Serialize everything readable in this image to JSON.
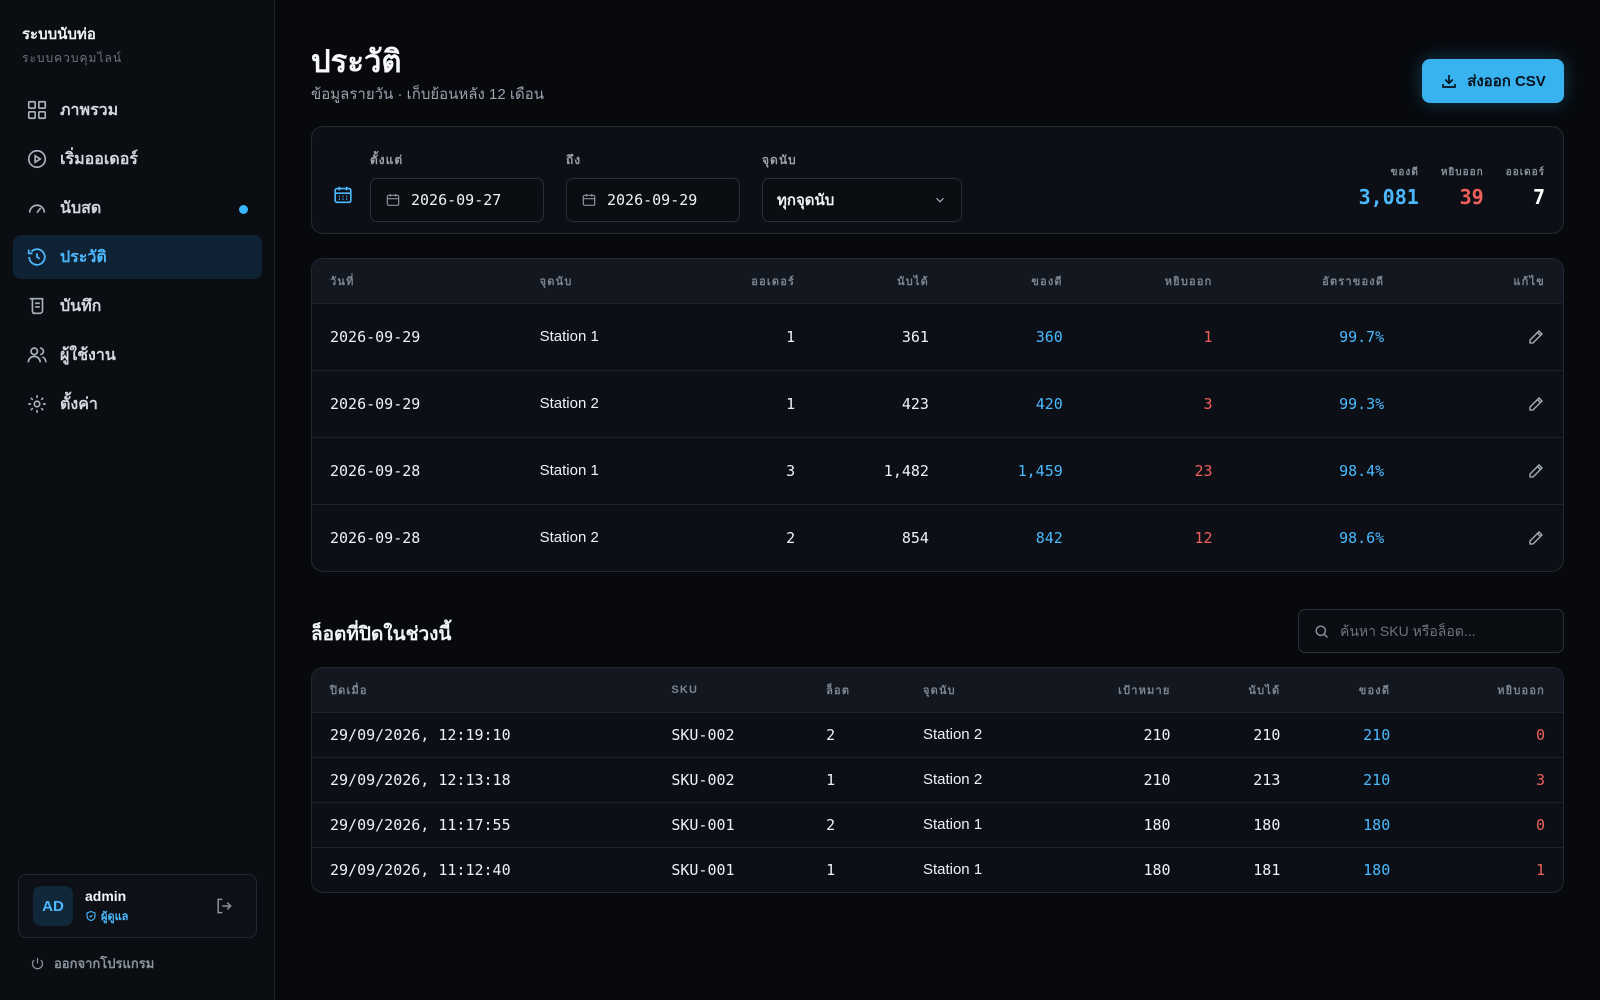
{
  "app": {
    "title": "ระบบนับท่อ",
    "subtitle": "ระบบควบคุมไลน์"
  },
  "nav": [
    {
      "label": "ภาพรวม",
      "icon": "grid-icon"
    },
    {
      "label": "เริ่มออเดอร์",
      "icon": "play-circle-icon"
    },
    {
      "label": "นับสด",
      "icon": "gauge-icon",
      "badge_dot": true
    },
    {
      "label": "ประวัติ",
      "icon": "history-icon",
      "active": true
    },
    {
      "label": "บันทึก",
      "icon": "scroll-icon"
    },
    {
      "label": "ผู้ใช้งาน",
      "icon": "users-icon"
    },
    {
      "label": "ตั้งค่า",
      "icon": "gear-icon"
    }
  ],
  "user": {
    "initials": "AD",
    "name": "admin",
    "role": "ผู้ดูแล"
  },
  "quit_label": "ออกจากโปรแกรม",
  "page": {
    "title": "ประวัติ",
    "subtitle": "ข้อมูลรายวัน · เก็บย้อนหลัง 12 เดือน",
    "export_label": "ส่งออก CSV"
  },
  "filters": {
    "from_label": "ตั้งแต่",
    "from_value": "2026-09-27",
    "to_label": "ถึง",
    "to_value": "2026-09-29",
    "station_label": "จุดนับ",
    "station_value": "ทุกจุดนับ"
  },
  "stats": [
    {
      "label": "ของดี",
      "value": "3,081",
      "color": "#4cb9ff"
    },
    {
      "label": "หยิบออก",
      "value": "39",
      "color": "#f0605a"
    },
    {
      "label": "ออเดอร์",
      "value": "7",
      "color": "#ffffff"
    }
  ],
  "daily_table": {
    "headers": [
      "วันที่",
      "จุดนับ",
      "ออเดอร์",
      "นับได้",
      "ของดี",
      "หยิบออก",
      "อัตราของดี",
      "แก้ไข"
    ],
    "rows": [
      {
        "date": "2026-09-29",
        "station": "Station 1",
        "orders": "1",
        "counted": "361",
        "good": "360",
        "removed": "1",
        "rate": "99.7%"
      },
      {
        "date": "2026-09-29",
        "station": "Station 2",
        "orders": "1",
        "counted": "423",
        "good": "420",
        "removed": "3",
        "rate": "99.3%"
      },
      {
        "date": "2026-09-28",
        "station": "Station 1",
        "orders": "3",
        "counted": "1,482",
        "good": "1,459",
        "removed": "23",
        "rate": "98.4%"
      },
      {
        "date": "2026-09-28",
        "station": "Station 2",
        "orders": "2",
        "counted": "854",
        "good": "842",
        "removed": "12",
        "rate": "98.6%"
      }
    ]
  },
  "lots": {
    "title": "ล็อตที่ปิดในช่วงนี้",
    "search_placeholder": "ค้นหา SKU หรือล็อต...",
    "headers": [
      "ปิดเมื่อ",
      "SKU",
      "ล็อต",
      "จุดนับ",
      "เป้าหมาย",
      "นับได้",
      "ของดี",
      "หยิบออก"
    ],
    "rows": [
      {
        "closed": "29/09/2026, 12:19:10",
        "sku": "SKU-002",
        "lot": "2",
        "station": "Station 2",
        "target": "210",
        "counted": "210",
        "good": "210",
        "removed": "0"
      },
      {
        "closed": "29/09/2026, 12:13:18",
        "sku": "SKU-002",
        "lot": "1",
        "station": "Station 2",
        "target": "210",
        "counted": "213",
        "good": "210",
        "removed": "3"
      },
      {
        "closed": "29/09/2026, 11:17:55",
        "sku": "SKU-001",
        "lot": "2",
        "station": "Station 1",
        "target": "180",
        "counted": "180",
        "good": "180",
        "removed": "0"
      },
      {
        "closed": "29/09/2026, 11:12:40",
        "sku": "SKU-001",
        "lot": "1",
        "station": "Station 1",
        "target": "180",
        "counted": "181",
        "good": "180",
        "removed": "1"
      }
    ]
  },
  "colors": {
    "accent": "#39b3f0",
    "good": "#4cb9ff",
    "removed": "#f0605a",
    "background": "#07090d"
  }
}
